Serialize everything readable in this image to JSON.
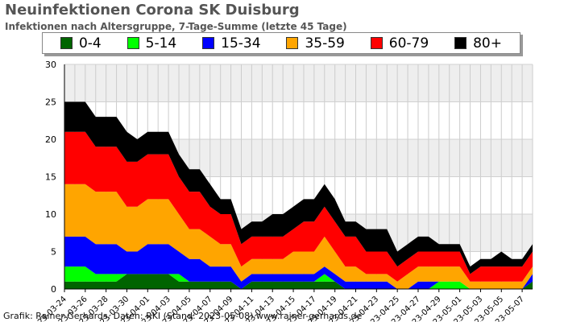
{
  "title": "Neuinfektionen Corona SK Duisburg",
  "subtitle": "Infektionen nach Altersgruppe, 7-Tage-Summe (letzte 45 Tage)",
  "credit": "Grafik: Rainer Gerhards, Daten: RKI (Stand: 2023-05-08) www.rainer-gerhards.de",
  "chart_data": {
    "type": "area",
    "stacked": true,
    "grid": true,
    "legend_position": "top",
    "x": [
      "2023-03-24",
      "2023-03-25",
      "2023-03-26",
      "2023-03-27",
      "2023-03-28",
      "2023-03-29",
      "2023-03-30",
      "2023-03-31",
      "2023-04-01",
      "2023-04-02",
      "2023-04-03",
      "2023-04-04",
      "2023-04-05",
      "2023-04-06",
      "2023-04-07",
      "2023-04-08",
      "2023-04-09",
      "2023-04-10",
      "2023-04-11",
      "2023-04-12",
      "2023-04-13",
      "2023-04-14",
      "2023-04-15",
      "2023-04-16",
      "2023-04-17",
      "2023-04-18",
      "2023-04-19",
      "2023-04-20",
      "2023-04-21",
      "2023-04-22",
      "2023-04-23",
      "2023-04-24",
      "2023-04-25",
      "2023-04-26",
      "2023-04-27",
      "2023-04-28",
      "2023-04-29",
      "2023-04-30",
      "2023-05-01",
      "2023-05-02",
      "2023-05-03",
      "2023-05-04",
      "2023-05-05",
      "2023-05-06",
      "2023-05-07",
      "2023-05-08"
    ],
    "x_tick_labels": [
      "2023-03-24",
      "2023-03-26",
      "2023-03-28",
      "2023-03-30",
      "2023-04-01",
      "2023-04-03",
      "2023-04-05",
      "2023-04-07",
      "2023-04-09",
      "2023-04-11",
      "2023-04-13",
      "2023-04-15",
      "2023-04-17",
      "2023-04-19",
      "2023-04-21",
      "2023-04-23",
      "2023-04-25",
      "2023-04-27",
      "2023-04-29",
      "2023-05-01",
      "2023-05-03",
      "2023-05-05",
      "2023-05-07"
    ],
    "ylim": [
      0,
      30
    ],
    "yticks": [
      0,
      5,
      10,
      15,
      20,
      25,
      30
    ],
    "series": [
      {
        "name": "0-4",
        "color": "#006400",
        "values": [
          1,
          1,
          1,
          1,
          1,
          1,
          2,
          2,
          2,
          2,
          2,
          1,
          1,
          1,
          1,
          1,
          1,
          0,
          1,
          1,
          1,
          1,
          1,
          1,
          1,
          1,
          1,
          0,
          0,
          0,
          0,
          0,
          0,
          0,
          0,
          0,
          0,
          0,
          0,
          0,
          0,
          0,
          0,
          0,
          0,
          1
        ]
      },
      {
        "name": "5-14",
        "color": "#00ff00",
        "values": [
          2,
          2,
          2,
          1,
          1,
          1,
          0,
          0,
          0,
          0,
          0,
          1,
          0,
          0,
          0,
          0,
          0,
          0,
          0,
          0,
          0,
          0,
          0,
          0,
          0,
          1,
          0,
          0,
          0,
          0,
          0,
          0,
          0,
          0,
          0,
          0,
          1,
          1,
          1,
          0,
          0,
          0,
          0,
          0,
          0,
          0
        ]
      },
      {
        "name": "15-34",
        "color": "#0000ff",
        "values": [
          4,
          4,
          4,
          4,
          4,
          4,
          3,
          3,
          4,
          4,
          4,
          3,
          3,
          3,
          2,
          2,
          2,
          1,
          1,
          1,
          1,
          1,
          1,
          1,
          1,
          1,
          1,
          1,
          1,
          1,
          1,
          1,
          0,
          0,
          1,
          1,
          0,
          0,
          0,
          0,
          0,
          0,
          0,
          0,
          0,
          1
        ]
      },
      {
        "name": "35-59",
        "color": "#ffa500",
        "values": [
          7,
          7,
          7,
          7,
          7,
          7,
          6,
          6,
          6,
          6,
          6,
          5,
          4,
          4,
          4,
          3,
          3,
          2,
          2,
          2,
          2,
          2,
          3,
          3,
          3,
          4,
          3,
          2,
          2,
          1,
          1,
          1,
          1,
          2,
          2,
          2,
          2,
          2,
          2,
          1,
          1,
          1,
          1,
          1,
          1,
          1
        ]
      },
      {
        "name": "60-79",
        "color": "#ff0000",
        "values": [
          7,
          7,
          7,
          6,
          6,
          6,
          6,
          6,
          6,
          6,
          6,
          5,
          5,
          5,
          4,
          4,
          4,
          3,
          3,
          3,
          3,
          3,
          3,
          4,
          4,
          4,
          4,
          4,
          4,
          3,
          3,
          3,
          2,
          2,
          2,
          2,
          2,
          2,
          2,
          1,
          2,
          2,
          2,
          2,
          2,
          2
        ]
      },
      {
        "name": "80+",
        "color": "#000000",
        "values": [
          4,
          4,
          4,
          4,
          4,
          4,
          4,
          3,
          3,
          3,
          3,
          3,
          3,
          3,
          3,
          2,
          2,
          2,
          2,
          2,
          3,
          3,
          3,
          3,
          3,
          3,
          3,
          2,
          2,
          3,
          3,
          3,
          2,
          2,
          2,
          2,
          1,
          1,
          1,
          1,
          1,
          1,
          2,
          1,
          1,
          1
        ]
      }
    ]
  }
}
